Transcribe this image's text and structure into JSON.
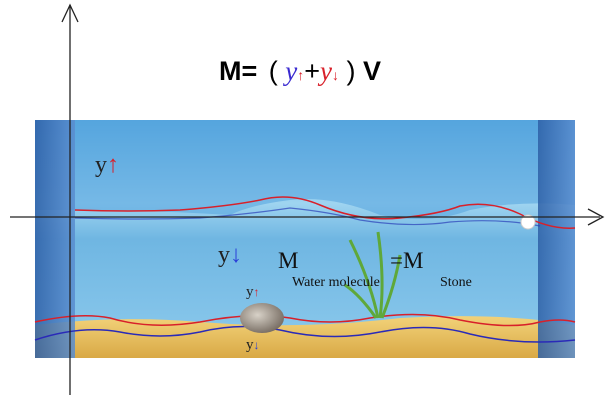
{
  "formula": {
    "lhs": "M=",
    "open": "(",
    "y_up": "y",
    "up_arrow": "↑",
    "plus": "+",
    "y_down": "y",
    "down_arrow": "↓",
    "close": ")",
    "rhs": "V"
  },
  "labels": {
    "surface_up": {
      "symbol": "y",
      "arrow": "↑"
    },
    "surface_down": {
      "symbol": "y",
      "arrow": "↓"
    },
    "mass_left": "M",
    "water_molecule": "Water molecule",
    "mass_right": "=M",
    "stone": "Stone",
    "stone_up": {
      "symbol": "y",
      "arrow": "↑"
    },
    "stone_down": {
      "symbol": "y",
      "arrow": "↓"
    }
  }
}
